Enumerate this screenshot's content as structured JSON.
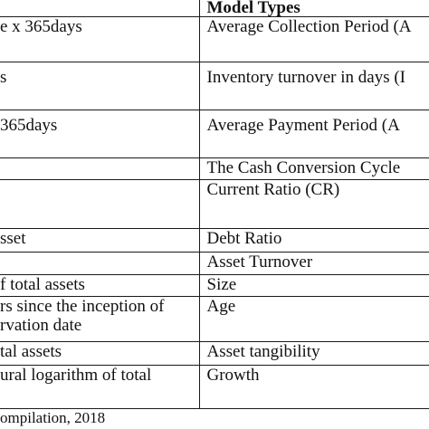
{
  "table": {
    "header": {
      "left": "",
      "right": "Model Types"
    },
    "rows": [
      {
        "left": [
          "e x 365days"
        ],
        "right": [
          "Average Collection Period (A"
        ]
      },
      {
        "left": [
          "s"
        ],
        "right": [
          "Inventory turnover in days (I"
        ]
      },
      {
        "left": [
          "365days"
        ],
        "right": [
          "Average Payment Period (A"
        ]
      },
      {
        "left": [
          ""
        ],
        "right": [
          "The Cash Conversion Cycle"
        ]
      },
      {
        "left": [
          ""
        ],
        "right": [
          "Current Ratio (CR)"
        ]
      },
      {
        "left": [
          "sset"
        ],
        "right": [
          "Debt Ratio"
        ]
      },
      {
        "left": [
          ""
        ],
        "right": [
          "Asset Turnover"
        ]
      },
      {
        "left": [
          "f total assets"
        ],
        "right": [
          "Size"
        ]
      },
      {
        "left": [
          "rs since the inception of",
          "rvation date"
        ],
        "right": [
          "Age"
        ]
      },
      {
        "left": [
          "tal assets"
        ],
        "right": [
          "Asset tangibility"
        ]
      },
      {
        "left": [
          "ural logarithm of total",
          ""
        ],
        "right": [
          "Growth"
        ]
      }
    ]
  },
  "source_note": "ompilation, 2018"
}
